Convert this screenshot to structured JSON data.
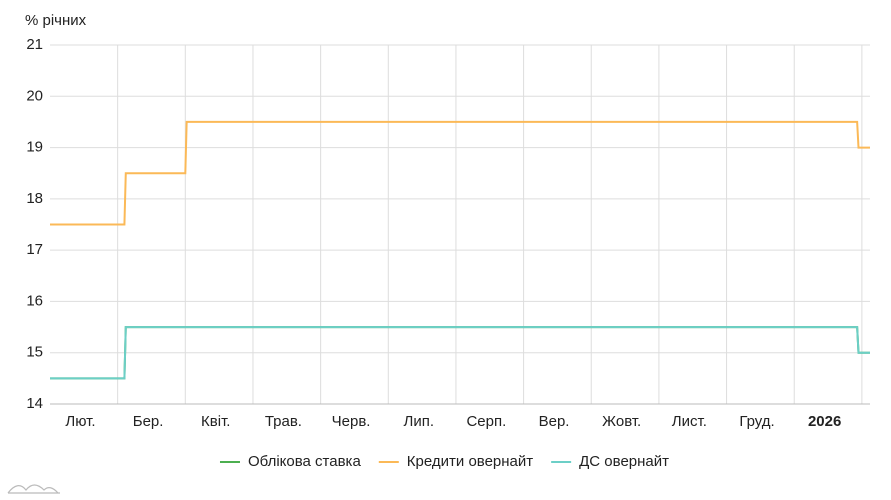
{
  "chart_data": {
    "type": "line",
    "y_label": "% річних",
    "xlim": [
      0,
      12.12
    ],
    "xgrid": [
      1,
      2,
      3,
      4,
      5,
      6,
      7,
      8,
      9,
      10,
      11,
      12
    ],
    "xticks": [
      {
        "value": 0.45,
        "label": "Лют."
      },
      {
        "value": 1.45,
        "label": "Бер."
      },
      {
        "value": 2.45,
        "label": "Квіт."
      },
      {
        "value": 3.45,
        "label": "Трав."
      },
      {
        "value": 4.45,
        "label": "Черв."
      },
      {
        "value": 5.45,
        "label": "Лип."
      },
      {
        "value": 6.45,
        "label": "Серп."
      },
      {
        "value": 7.45,
        "label": "Вер."
      },
      {
        "value": 8.45,
        "label": "Жовт."
      },
      {
        "value": 9.45,
        "label": "Лист."
      },
      {
        "value": 10.45,
        "label": "Груд."
      },
      {
        "value": 11.45,
        "label": "2026",
        "bold": true
      }
    ],
    "ylim": [
      14,
      21
    ],
    "yticks": [
      14,
      15,
      16,
      17,
      18,
      19,
      20,
      21
    ],
    "grid": true,
    "legend": "bottom",
    "series": [
      {
        "name": "Облікова ставка",
        "color": "#4caf50",
        "x": [
          0,
          1.1,
          1.12,
          11.93,
          11.95,
          12.12
        ],
        "values": [
          14.5,
          14.5,
          15.5,
          15.5,
          15,
          15
        ]
      },
      {
        "name": "Кредити овернайт",
        "color": "#fbb957",
        "x": [
          0,
          1.1,
          1.12,
          2.0,
          2.02,
          11.93,
          11.95,
          12.12
        ],
        "values": [
          17.5,
          17.5,
          18.5,
          18.5,
          19.5,
          19.5,
          19,
          19
        ]
      },
      {
        "name": "ДС овернайт",
        "color": "#6ccfc7",
        "x": [
          0,
          1.1,
          1.12,
          11.93,
          11.95,
          12.12
        ],
        "values": [
          14.5,
          14.5,
          15.5,
          15.5,
          15,
          15
        ]
      }
    ]
  }
}
